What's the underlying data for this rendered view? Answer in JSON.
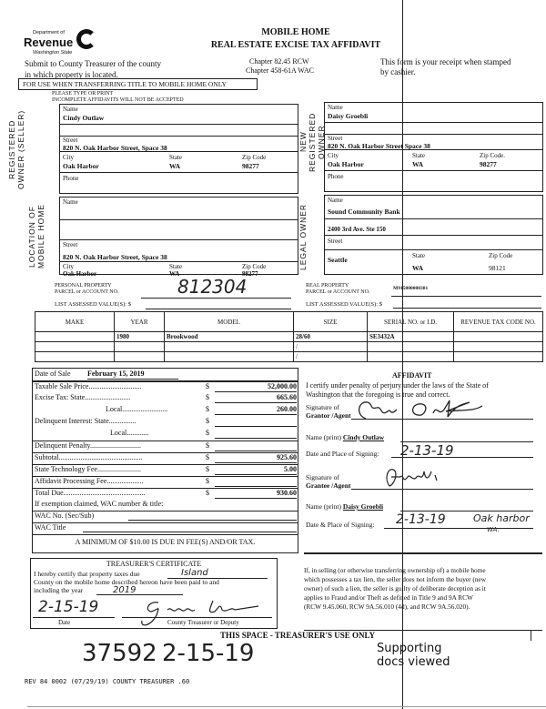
{
  "header": {
    "logo_dept": "Department of",
    "logo_name": "Revenue",
    "logo_state": "Washington State",
    "title1": "MOBILE HOME",
    "title2": "REAL ESTATE EXCISE TAX AFFIDAVIT",
    "submit1": "Submit to County Treasurer of the county",
    "submit2": "in which property is located.",
    "chapter1": "Chapter 82.45 RCW",
    "chapter2": "Chapter 458-61A WAC",
    "receipt1": "This form is your receipt when stamped",
    "receipt2": "by cashier.",
    "notice": "FOR USE WHEN TRANSFERRING TITLE TO MOBILE HOME ONLY",
    "type_print": "PLEASE TYPE OR PRINT",
    "incomplete": "INCOMPLETE AFFIDAVITS WILL NOT BE ACCEPTED"
  },
  "labels": {
    "name": "Name",
    "street": "Street",
    "city": "City",
    "state": "State",
    "zip": "Zip Code",
    "zip2": "Zip Code.",
    "phone": "Phone"
  },
  "seller": {
    "section": "REGISTERED OWNER (SELLER)",
    "name": "Cindy  Outlaw",
    "street": "820 N. Oak Harbor Street, Space 38",
    "city": "Oak Harbor",
    "state": "WA",
    "zip": "98277"
  },
  "buyer": {
    "section": "NEW REGISTERED OWNER",
    "name": "Daisy  Groebli",
    "street": "820 N. Oak Harbor Street Space 38",
    "city": "Oak Harbor",
    "state": "WA",
    "zip": "98277"
  },
  "location": {
    "section": "LOCATION OF MOBILE HOME",
    "street": "820 N. Oak Harbor Street, Space 38",
    "city": "Oak Harbor",
    "state": "WA",
    "zip": "98277"
  },
  "legal_owner": {
    "section": "LEGAL OWNER",
    "name": "Sound Community Bank",
    "address": "2400 3rd Ave. Ste 150",
    "city": "Seattle",
    "state": "WA",
    "zip": "98121"
  },
  "parcel": {
    "personal_label1": "PERSONAL PROPERTY",
    "personal_label2": "PARCEL or ACCOUNT NO.",
    "personal_value": "812304",
    "assessed_label": "LIST ASSESSED VALUE(S): $",
    "real_label1": "REAL PROPERTY",
    "real_label2": "PARCEL or ACCOUNT NO.",
    "real_value": "M915000000381"
  },
  "table": {
    "headers": [
      "MAKE",
      "YEAR",
      "MODEL",
      "SIZE",
      "SERIAL NO. or I.D.",
      "REVENUE TAX CODE NO."
    ],
    "rows": [
      [
        "",
        "1980",
        "Brookwood",
        "28/60",
        "SE3432A",
        ""
      ],
      [
        "",
        "",
        "",
        "/",
        "",
        ""
      ],
      [
        "",
        "",
        "",
        "/",
        "",
        ""
      ]
    ]
  },
  "fees": {
    "date_label": "Date of Sale",
    "date": "February 15, 2019",
    "dollar": "$",
    "items": [
      {
        "label": "Taxable Sale Price.............................",
        "value": "52,000.00"
      },
      {
        "label": "Excise Tax:      State.........................",
        "value": "665.60"
      },
      {
        "label": "Local.........................",
        "value": "260.00"
      },
      {
        "label": "Delinquent Interest:    State...............",
        "value": ""
      },
      {
        "label": "Local............",
        "value": ""
      },
      {
        "label": "Delinquent Penalty............................",
        "value": ""
      },
      {
        "label": "Subtotal..............................................",
        "value": "925.60"
      },
      {
        "label": "State Technology Fee........................",
        "value": "5.00"
      },
      {
        "label": "Affidavit Processing Fee....................",
        "value": ""
      },
      {
        "label": "Total Due.............................................",
        "value": "930.60"
      }
    ],
    "exemption": "If exemption claimed, WAC number & title:",
    "wac_no": "WAC No. (Sec/Sub)",
    "wac_title": "WAC Title",
    "minimum": "A MINIMUM OF $10.00 IS DUE IN FEE(S) AND/OR TAX."
  },
  "affidavit": {
    "title": "AFFIDAVIT",
    "text1": "I certify under penalty of perjury under the laws of the State of",
    "text2": "Washington that the foregoing is true and correct.",
    "sig_label1": "Signature of",
    "grantor": "Grantor /Agent",
    "grantee": "Grantee /Agent",
    "name_print": "Name (print)",
    "grantor_name": "Cindy  Outlaw",
    "grantee_name": "Daisy  Groebli",
    "date_place1": "Date and Place of Signing:",
    "date_place2": "Date & Place of Signing:",
    "grantor_date": "2-13-19",
    "grantee_date": "2-13-19",
    "grantee_place": "Oak harbor",
    "grantee_place2": "WA."
  },
  "treasurer": {
    "title": "TREASURER'S CERTIFICATE",
    "line1": "I hereby certify that property taxes due",
    "county": "Island",
    "line2": "County on the mobile home described hereon have been paid to and",
    "line3": "including the year",
    "year": "2019",
    "date": "2-15-19",
    "date_label": "Date",
    "deputy_label": "County Treasurer or Deputy"
  },
  "warning": {
    "l1": "If, in selling (or otherwise transferring ownership of) a mobile home",
    "l2": "which possesses a tax lien, the seller does not inform the buyer (new",
    "l3": "owner) of such a lien, the seller is guilty of deliberate deception as it",
    "l4": "applies to Fraud and/or Theft as defined in Title 9 and 9A RCW",
    "l5": "(RCW 9.45.060, RCW 9A.56.010 (4d), and RCW 9A.56.020)."
  },
  "use_only": {
    "title": "THIS SPACE - TREASURER'S USE ONLY",
    "receipt": "37592",
    "date": "2-15-19",
    "stamp1": "Supporting",
    "stamp2": "docs viewed"
  },
  "footer": {
    "rev": "REV 84 0002 (07/29/19) COUNTY TREASURER .60"
  }
}
